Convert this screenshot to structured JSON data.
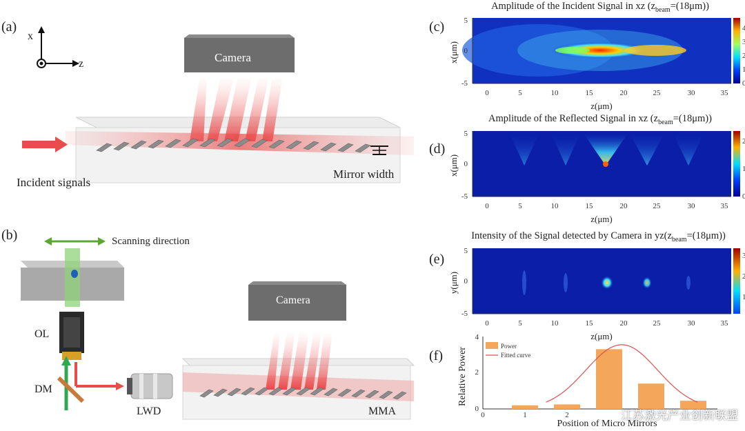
{
  "labels": {
    "a": "(a)",
    "b": "(b)",
    "c": "(c)",
    "d": "(d)",
    "e": "(e)",
    "f": "(f)"
  },
  "schematic_a": {
    "axis_x": "x",
    "axis_z": "z",
    "camera": "Camera",
    "incident": "Incident signals",
    "mirror_width": "Mirror width"
  },
  "schematic_b": {
    "scanning": "Scanning direction",
    "ol": "OL",
    "dm": "DM",
    "lwd": "LWD",
    "camera": "Camera",
    "mma": "MMA"
  },
  "panel_c": {
    "title_pre": "Amplitude of the Incident Signal in xz (z",
    "title_sub": "beam",
    "title_post": "=(18μm))",
    "ylabel": "x(μm)",
    "xlabel": "z(μm)",
    "yticks": [
      "5",
      "0",
      "-5"
    ],
    "xticks": [
      "0",
      "5",
      "10",
      "15",
      "20",
      "25",
      "30",
      "35"
    ],
    "cbar_ticks": [
      "4",
      "3",
      "2",
      "1",
      "0"
    ]
  },
  "panel_d": {
    "title_pre": "Amplitude of the Reflected Signal in xz (z",
    "title_sub": "beam",
    "title_post": "=(18μm))",
    "ylabel": "x(μm)",
    "xlabel": "z(μm)",
    "yticks": [
      "5",
      "0",
      "-5"
    ],
    "xticks": [
      "0",
      "5",
      "10",
      "15",
      "20",
      "25",
      "30",
      "35"
    ],
    "cbar_ticks": [
      "2",
      "1",
      "0"
    ]
  },
  "panel_e": {
    "title_pre": "Intensity of the Signal detected by Camera in yz(z",
    "title_sub": "beam",
    "title_post": "=(18μm))",
    "ylabel": "y(μm)",
    "xlabel": "z(μm)",
    "yticks": [
      "5",
      "0",
      "-5"
    ],
    "xticks": [
      "0",
      "5",
      "10",
      "15",
      "20",
      "25",
      "30",
      "35"
    ],
    "cbar_ticks": [
      "3",
      "2",
      "1"
    ]
  },
  "chart_data": {
    "type": "bar",
    "categories": [
      "1",
      "2",
      "3",
      "4",
      "5"
    ],
    "series": [
      {
        "name": "Power",
        "values": [
          0.2,
          0.25,
          3.3,
          1.4,
          0.45
        ]
      }
    ],
    "fitted_curve_name": "Fitted curve",
    "xlabel": "Position of Micro Mirrors",
    "ylabel": "Relative Power",
    "yticks": [
      "4",
      "2",
      "0"
    ],
    "xticks": [
      "0",
      "1",
      "2"
    ],
    "ylim": [
      0,
      4
    ],
    "bar_color": "#f4a65a",
    "curve_color": "#d9534f"
  },
  "watermark": "江苏激光产业创新联盟"
}
